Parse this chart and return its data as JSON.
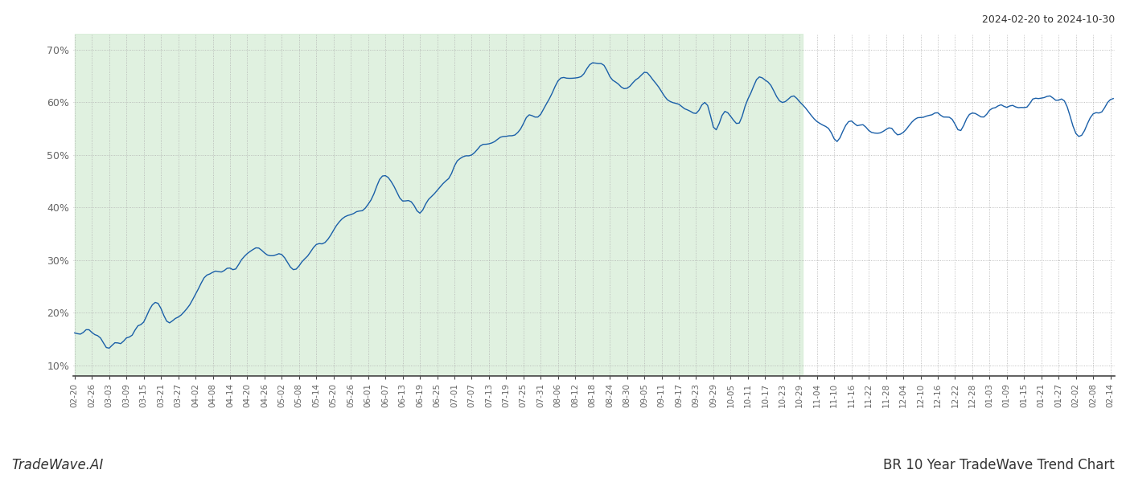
{
  "title_top_right": "2024-02-20 to 2024-10-30",
  "title_bottom_right": "BR 10 Year TradeWave Trend Chart",
  "title_bottom_left": "TradeWave.AI",
  "ylim": [
    0.08,
    0.73
  ],
  "yticks": [
    0.1,
    0.2,
    0.3,
    0.4,
    0.5,
    0.6,
    0.7
  ],
  "ytick_labels": [
    "10%",
    "20%",
    "30%",
    "40%",
    "50%",
    "60%",
    "70%"
  ],
  "line_color": "#1a5fa8",
  "background_color": "#ffffff",
  "shaded_color": "#d4ecd4",
  "shaded_alpha": 0.7,
  "grid_color": "#b0b0b0",
  "grid_style": ":",
  "figsize": [
    14,
    6
  ],
  "dpi": 100,
  "shaded_start": "2024-02-20",
  "shaded_end": "2024-10-30",
  "data_start": "2024-02-20",
  "data_end": "2025-02-15"
}
